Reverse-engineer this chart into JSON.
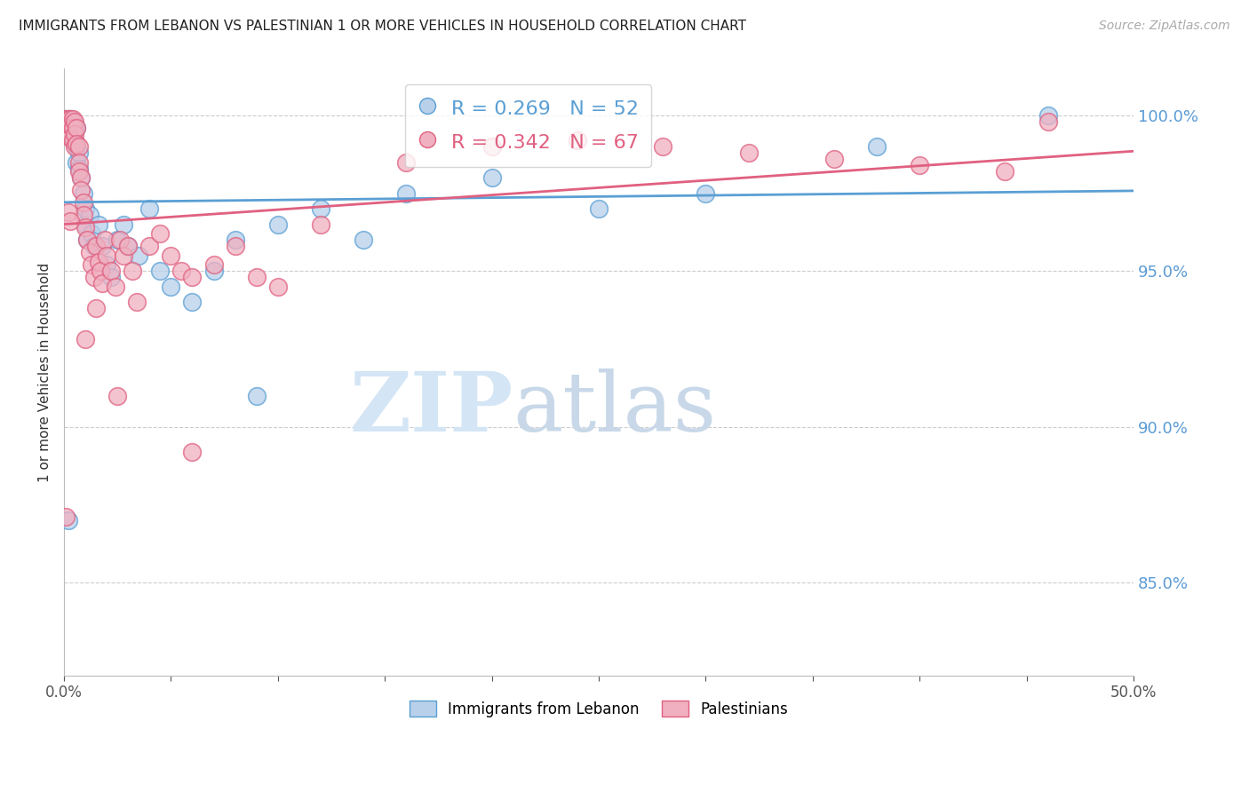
{
  "title": "IMMIGRANTS FROM LEBANON VS PALESTINIAN 1 OR MORE VEHICLES IN HOUSEHOLD CORRELATION CHART",
  "source_text": "Source: ZipAtlas.com",
  "ylabel_left": "1 or more Vehicles in Household",
  "legend_label_blue": "Immigrants from Lebanon",
  "legend_label_pink": "Palestinians",
  "R_blue": 0.269,
  "N_blue": 52,
  "R_pink": 0.342,
  "N_pink": 67,
  "color_blue_fill": "#b8d0ea",
  "color_pink_fill": "#f0b0c0",
  "color_line_blue": "#5a9fd4",
  "color_line_pink": "#e06080",
  "color_right_axis": "#5b9bd5",
  "watermark_zip": "ZIP",
  "watermark_atlas": "atlas",
  "watermark_color": "#d4e5f5",
  "right_yticks": [
    85.0,
    90.0,
    95.0,
    100.0
  ],
  "xlim": [
    0.0,
    0.5
  ],
  "ylim": [
    0.82,
    1.015
  ],
  "blue_x": [
    0.001,
    0.001,
    0.001,
    0.002,
    0.002,
    0.002,
    0.003,
    0.003,
    0.003,
    0.004,
    0.004,
    0.004,
    0.005,
    0.005,
    0.006,
    0.006,
    0.006,
    0.007,
    0.007,
    0.008,
    0.009,
    0.01,
    0.01,
    0.011,
    0.012,
    0.013,
    0.014,
    0.016,
    0.018,
    0.02,
    0.022,
    0.025,
    0.028,
    0.03,
    0.035,
    0.04,
    0.045,
    0.05,
    0.06,
    0.07,
    0.08,
    0.09,
    0.1,
    0.12,
    0.14,
    0.16,
    0.2,
    0.25,
    0.3,
    0.38,
    0.46,
    0.002
  ],
  "blue_y": [
    0.999,
    0.997,
    0.996,
    0.999,
    0.998,
    0.995,
    0.999,
    0.997,
    0.994,
    0.998,
    0.996,
    0.993,
    0.997,
    0.992,
    0.996,
    0.99,
    0.985,
    0.988,
    0.983,
    0.98,
    0.975,
    0.97,
    0.965,
    0.96,
    0.968,
    0.962,
    0.958,
    0.965,
    0.958,
    0.952,
    0.948,
    0.96,
    0.965,
    0.958,
    0.955,
    0.97,
    0.95,
    0.945,
    0.94,
    0.95,
    0.96,
    0.91,
    0.965,
    0.97,
    0.96,
    0.975,
    0.98,
    0.97,
    0.975,
    0.99,
    1.0,
    0.87
  ],
  "pink_x": [
    0.001,
    0.001,
    0.002,
    0.002,
    0.002,
    0.003,
    0.003,
    0.003,
    0.004,
    0.004,
    0.004,
    0.005,
    0.005,
    0.005,
    0.006,
    0.006,
    0.007,
    0.007,
    0.007,
    0.008,
    0.008,
    0.009,
    0.009,
    0.01,
    0.011,
    0.012,
    0.013,
    0.014,
    0.015,
    0.016,
    0.017,
    0.018,
    0.019,
    0.02,
    0.022,
    0.024,
    0.026,
    0.028,
    0.03,
    0.032,
    0.034,
    0.04,
    0.045,
    0.05,
    0.055,
    0.06,
    0.07,
    0.08,
    0.09,
    0.1,
    0.12,
    0.16,
    0.2,
    0.24,
    0.28,
    0.32,
    0.36,
    0.4,
    0.44,
    0.46,
    0.001,
    0.002,
    0.003,
    0.01,
    0.015,
    0.025,
    0.06
  ],
  "pink_y": [
    0.999,
    0.996,
    0.999,
    0.997,
    0.994,
    0.999,
    0.997,
    0.993,
    0.999,
    0.996,
    0.992,
    0.998,
    0.994,
    0.99,
    0.996,
    0.991,
    0.99,
    0.985,
    0.982,
    0.98,
    0.976,
    0.972,
    0.968,
    0.964,
    0.96,
    0.956,
    0.952,
    0.948,
    0.958,
    0.953,
    0.95,
    0.946,
    0.96,
    0.955,
    0.95,
    0.945,
    0.96,
    0.955,
    0.958,
    0.95,
    0.94,
    0.958,
    0.962,
    0.955,
    0.95,
    0.948,
    0.952,
    0.958,
    0.948,
    0.945,
    0.965,
    0.985,
    0.99,
    0.992,
    0.99,
    0.988,
    0.986,
    0.984,
    0.982,
    0.998,
    0.871,
    0.969,
    0.966,
    0.928,
    0.938,
    0.91,
    0.892
  ]
}
